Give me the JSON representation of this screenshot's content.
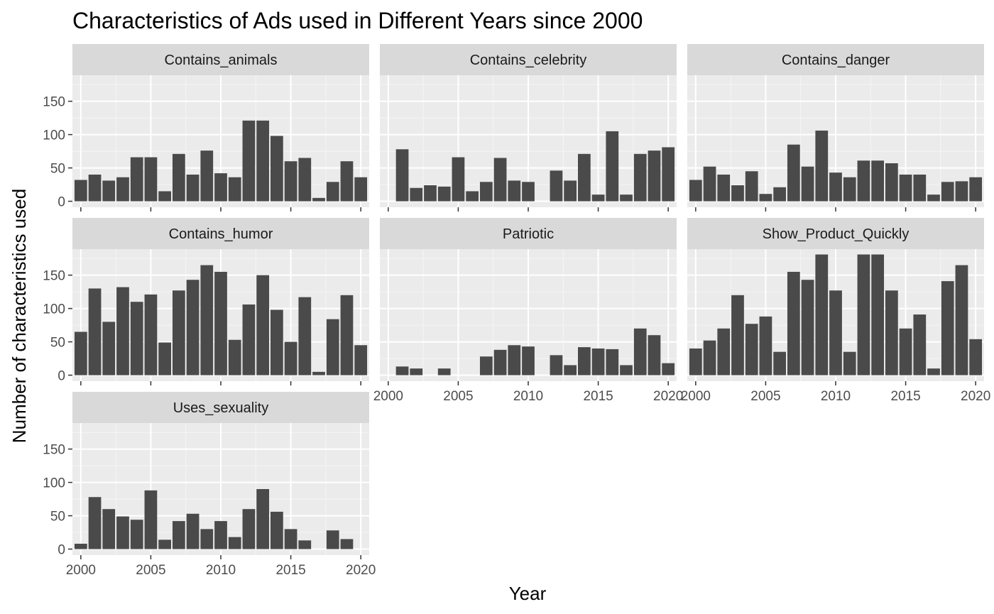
{
  "chart_data": {
    "type": "bar",
    "title": "Characteristics of Ads used in Different Years since 2000",
    "xlabel": "Year",
    "ylabel": "Number of characteristics used",
    "xlim": [
      1999.4,
      2020.6
    ],
    "ylim": [
      -9,
      189
    ],
    "x_ticks": [
      2000,
      2005,
      2010,
      2015,
      2020
    ],
    "y_ticks": [
      0,
      50,
      100,
      150
    ],
    "grid": true,
    "legend": "none",
    "bar_color": "#4a4a4a",
    "panel_background": "#ebebeb",
    "strip_background": "#d9d9d9",
    "years": [
      2000,
      2001,
      2002,
      2003,
      2004,
      2005,
      2006,
      2007,
      2008,
      2009,
      2010,
      2011,
      2012,
      2013,
      2014,
      2015,
      2016,
      2017,
      2018,
      2019,
      2020
    ],
    "panels": [
      {
        "name": "Contains_animals",
        "values": [
          32,
          40,
          31,
          36,
          66,
          66,
          15,
          71,
          40,
          76,
          42,
          36,
          121,
          121,
          98,
          60,
          65,
          5,
          29,
          60,
          36
        ]
      },
      {
        "name": "Contains_celebrity",
        "values": [
          0,
          78,
          20,
          24,
          22,
          66,
          15,
          29,
          65,
          31,
          29,
          0,
          46,
          31,
          71,
          10,
          105,
          10,
          71,
          76,
          81
        ]
      },
      {
        "name": "Contains_danger",
        "values": [
          32,
          52,
          40,
          24,
          45,
          11,
          21,
          85,
          52,
          106,
          43,
          36,
          61,
          61,
          57,
          40,
          40,
          10,
          29,
          30,
          36
        ]
      },
      {
        "name": "Contains_humor",
        "values": [
          65,
          130,
          80,
          132,
          110,
          121,
          49,
          127,
          143,
          165,
          155,
          53,
          106,
          150,
          98,
          50,
          117,
          5,
          84,
          120,
          45
        ]
      },
      {
        "name": "Patriotic",
        "values": [
          0,
          13,
          10,
          0,
          10,
          0,
          0,
          28,
          38,
          45,
          43,
          0,
          30,
          15,
          42,
          40,
          39,
          15,
          70,
          60,
          18
        ]
      },
      {
        "name": "Show_Product_Quickly",
        "values": [
          40,
          52,
          70,
          120,
          77,
          88,
          35,
          155,
          143,
          181,
          127,
          35,
          181,
          181,
          127,
          70,
          91,
          10,
          141,
          165,
          54
        ]
      },
      {
        "name": "Uses_sexuality",
        "values": [
          8,
          78,
          60,
          49,
          44,
          88,
          14,
          42,
          53,
          30,
          42,
          18,
          60,
          90,
          56,
          30,
          13,
          0,
          28,
          15,
          0
        ]
      }
    ]
  }
}
